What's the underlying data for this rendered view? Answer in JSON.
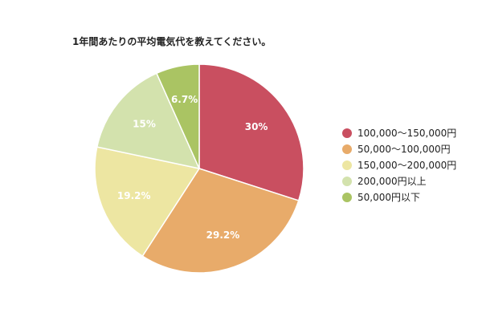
{
  "chart_data": {
    "type": "pie",
    "title": "1年間あたりの平均電気代を教えてください。",
    "slices": [
      {
        "label": "100,000〜150,000円",
        "value": 30,
        "value_label": "30%",
        "color": "#c94f60"
      },
      {
        "label": "50,000〜100,000円",
        "value": 29.2,
        "value_label": "29.2%",
        "color": "#e8ab6a"
      },
      {
        "label": "150,000〜200,000円",
        "value": 19.2,
        "value_label": "19.2%",
        "color": "#ede6a2"
      },
      {
        "label": "200,000円以上",
        "value": 15,
        "value_label": "15%",
        "color": "#d3e2ad"
      },
      {
        "label": "50,000円以下",
        "value": 6.7,
        "value_label": "6.7%",
        "color": "#aac463"
      }
    ],
    "legend_position": "right",
    "start_angle": "top",
    "direction": "clockwise"
  }
}
